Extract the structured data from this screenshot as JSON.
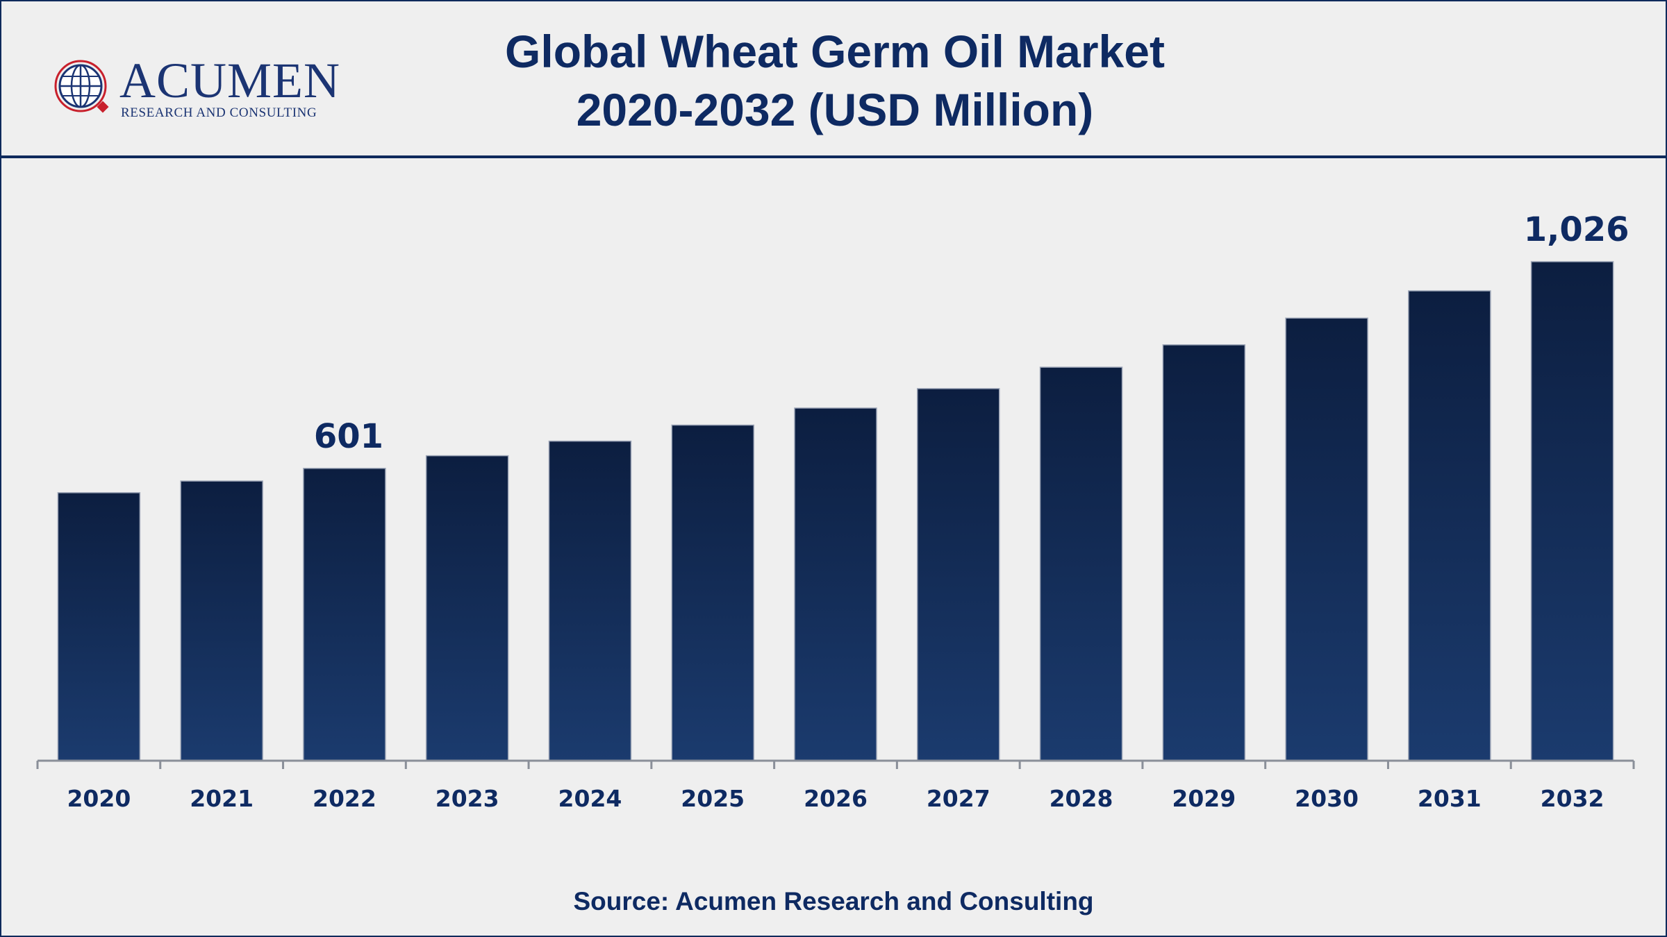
{
  "header": {
    "logo_name": "ACUMEN",
    "logo_tagline": "RESEARCH AND CONSULTING",
    "title_line1": "Global Wheat Germ Oil Market",
    "title_line2": "2020-2032 (USD Million)"
  },
  "source": "Source: Acumen Research and Consulting",
  "colors": {
    "primary": "#0e2a62",
    "bar_top": "#0c1e40",
    "bar_bottom": "#1b3b6e",
    "background": "#efefef"
  },
  "chart_data": {
    "type": "bar",
    "title": "Global Wheat Germ Oil Market 2020-2032 (USD Million)",
    "categories": [
      "2020",
      "2021",
      "2022",
      "2023",
      "2024",
      "2025",
      "2026",
      "2027",
      "2028",
      "2029",
      "2030",
      "2031",
      "2032"
    ],
    "values": [
      551,
      575,
      601,
      627,
      657,
      690,
      725,
      765,
      809,
      855,
      910,
      966,
      1026
    ],
    "data_labels": [
      {
        "index": 2,
        "text": "601"
      },
      {
        "index": 12,
        "text": "1,026"
      }
    ],
    "xlabel": "",
    "ylabel": "",
    "ylim": [
      0,
      1026
    ],
    "grid": false,
    "legend": "none"
  }
}
